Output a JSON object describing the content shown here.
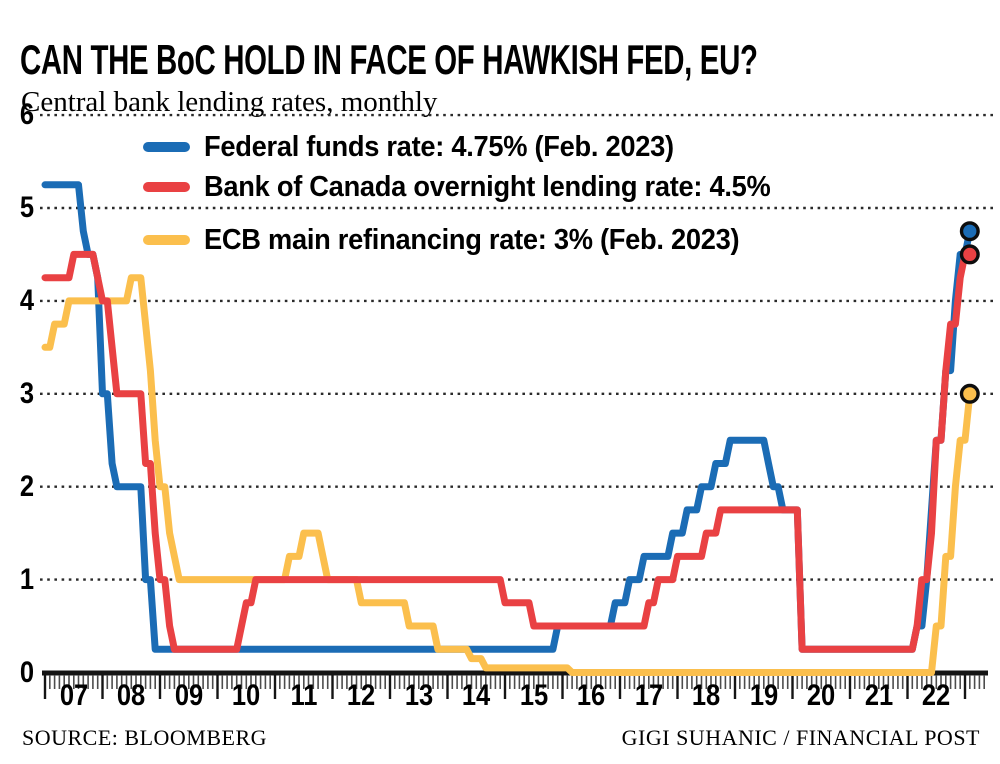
{
  "header": {
    "title": "CAN THE BoC HOLD IN FACE OF HAWKISH FED, EU?",
    "subtitle": "Central bank lending rates, monthly"
  },
  "footer": {
    "source": "SOURCE: BLOOMBERG",
    "credit": "GIGI SUHANIC / FINANCIAL POST"
  },
  "chart_data": {
    "type": "line",
    "title": "CAN THE BoC HOLD IN FACE OF HAWKISH FED, EU?",
    "subtitle": "Central bank lending rates, monthly",
    "unit": "percent",
    "frequency": "monthly",
    "x_range": [
      "2007-01",
      "2023-02"
    ],
    "ylim": [
      0,
      6
    ],
    "y_ticks": [
      0,
      1,
      2,
      3,
      4,
      5,
      6
    ],
    "x_ticks": [
      "07",
      "08",
      "09",
      "10",
      "11",
      "12",
      "13",
      "14",
      "15",
      "16",
      "17",
      "18",
      "19",
      "20",
      "21",
      "22"
    ],
    "grid": "dotted horizontal gridlines at each integer",
    "legend_position": "top-left inside plot",
    "axis_color": "#141414",
    "gridline_color": "#2a2a2a",
    "marker_outline_color": "#0d0d0d",
    "series": [
      {
        "id": "fed",
        "name": "Federal funds rate",
        "label": "Federal funds rate: 4.75% (Feb. 2023)",
        "color": "#1b6cb5",
        "end_value": 4.75,
        "end_dot": true,
        "monthly_changes": [
          [
            "2007-01",
            5.25
          ],
          [
            "2007-09",
            4.75
          ],
          [
            "2007-10",
            4.5
          ],
          [
            "2007-12",
            4.25
          ],
          [
            "2008-01",
            3.0
          ],
          [
            "2008-03",
            2.25
          ],
          [
            "2008-04",
            2.0
          ],
          [
            "2008-10",
            1.0
          ],
          [
            "2008-12",
            0.25
          ],
          [
            "2015-12",
            0.5
          ],
          [
            "2016-12",
            0.75
          ],
          [
            "2017-03",
            1.0
          ],
          [
            "2017-06",
            1.25
          ],
          [
            "2017-12",
            1.5
          ],
          [
            "2018-03",
            1.75
          ],
          [
            "2018-06",
            2.0
          ],
          [
            "2018-09",
            2.25
          ],
          [
            "2018-12",
            2.5
          ],
          [
            "2019-08",
            2.25
          ],
          [
            "2019-09",
            2.0
          ],
          [
            "2019-11",
            1.75
          ],
          [
            "2020-03",
            0.25
          ],
          [
            "2022-03",
            0.5
          ],
          [
            "2022-05",
            1.0
          ],
          [
            "2022-06",
            1.75
          ],
          [
            "2022-07",
            2.5
          ],
          [
            "2022-09",
            3.25
          ],
          [
            "2022-11",
            4.0
          ],
          [
            "2022-12",
            4.5
          ],
          [
            "2023-02",
            4.75
          ]
        ]
      },
      {
        "id": "ecb",
        "name": "ECB main refinancing rate",
        "label": "ECB main refinancing rate: 3% (Feb. 2023)",
        "color": "#fbbf4d",
        "end_value": 3.0,
        "end_dot": true,
        "monthly_changes": [
          [
            "2007-01",
            3.5
          ],
          [
            "2007-03",
            3.75
          ],
          [
            "2007-06",
            4.0
          ],
          [
            "2008-07",
            4.25
          ],
          [
            "2008-10",
            3.75
          ],
          [
            "2008-11",
            3.25
          ],
          [
            "2008-12",
            2.5
          ],
          [
            "2009-01",
            2.0
          ],
          [
            "2009-03",
            1.5
          ],
          [
            "2009-04",
            1.25
          ],
          [
            "2009-05",
            1.0
          ],
          [
            "2011-04",
            1.25
          ],
          [
            "2011-07",
            1.5
          ],
          [
            "2011-11",
            1.25
          ],
          [
            "2011-12",
            1.0
          ],
          [
            "2012-07",
            0.75
          ],
          [
            "2013-05",
            0.5
          ],
          [
            "2013-11",
            0.25
          ],
          [
            "2014-06",
            0.15
          ],
          [
            "2014-09",
            0.05
          ],
          [
            "2016-03",
            0.0
          ],
          [
            "2022-07",
            0.5
          ],
          [
            "2022-09",
            1.25
          ],
          [
            "2022-11",
            2.0
          ],
          [
            "2022-12",
            2.5
          ],
          [
            "2023-02",
            3.0
          ]
        ]
      },
      {
        "id": "boc",
        "name": "Bank of Canada overnight lending rate",
        "label": "Bank of Canada overnight lending rate: 4.5%",
        "color": "#e94143",
        "end_value": 4.5,
        "end_dot": true,
        "monthly_changes": [
          [
            "2007-01",
            4.25
          ],
          [
            "2007-07",
            4.5
          ],
          [
            "2007-12",
            4.25
          ],
          [
            "2008-01",
            4.0
          ],
          [
            "2008-03",
            3.5
          ],
          [
            "2008-04",
            3.0
          ],
          [
            "2008-10",
            2.25
          ],
          [
            "2008-12",
            1.5
          ],
          [
            "2009-01",
            1.0
          ],
          [
            "2009-03",
            0.5
          ],
          [
            "2009-04",
            0.25
          ],
          [
            "2010-06",
            0.5
          ],
          [
            "2010-07",
            0.75
          ],
          [
            "2010-09",
            1.0
          ],
          [
            "2015-01",
            0.75
          ],
          [
            "2015-07",
            0.5
          ],
          [
            "2017-07",
            0.75
          ],
          [
            "2017-09",
            1.0
          ],
          [
            "2018-01",
            1.25
          ],
          [
            "2018-07",
            1.5
          ],
          [
            "2018-10",
            1.75
          ],
          [
            "2020-03",
            0.25
          ],
          [
            "2022-03",
            0.5
          ],
          [
            "2022-04",
            1.0
          ],
          [
            "2022-06",
            1.5
          ],
          [
            "2022-07",
            2.5
          ],
          [
            "2022-09",
            3.25
          ],
          [
            "2022-10",
            3.75
          ],
          [
            "2022-12",
            4.25
          ],
          [
            "2023-01",
            4.5
          ]
        ]
      }
    ],
    "legend_order": [
      "fed",
      "boc",
      "ecb"
    ]
  }
}
